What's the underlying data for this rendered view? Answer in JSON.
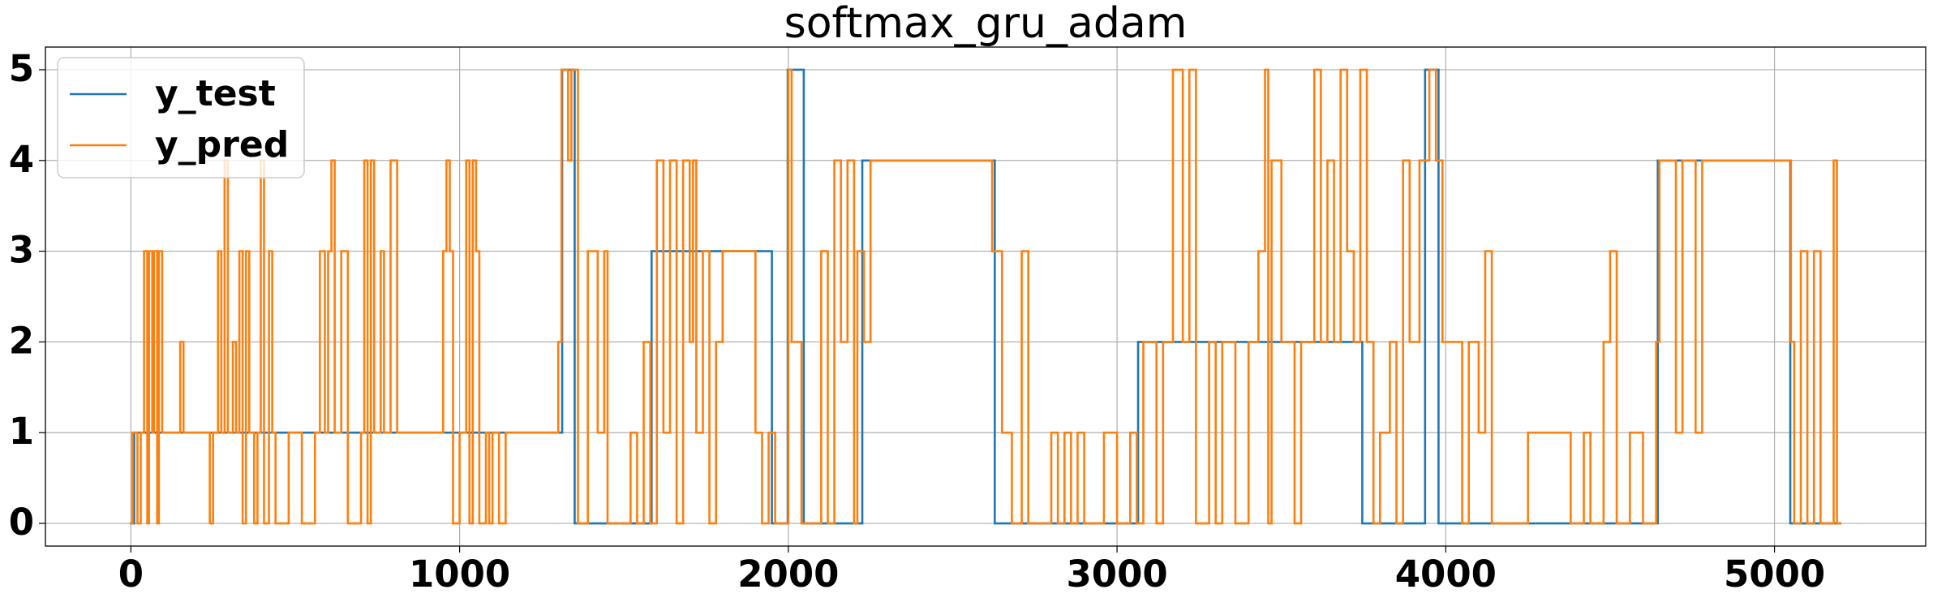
{
  "chart_data": {
    "type": "line",
    "drawstyle": "steps-post",
    "title": "softmax_gru_adam",
    "xlim": [
      -260,
      5460
    ],
    "ylim": [
      -0.25,
      5.25
    ],
    "xticks": [
      0,
      1000,
      2000,
      3000,
      4000,
      5000
    ],
    "yticks": [
      0,
      1,
      2,
      3,
      4,
      5
    ],
    "grid": true,
    "legend": "upper left",
    "series": [
      {
        "name": "y_test",
        "color": "#1f77b4",
        "x": [
          0,
          10,
          1312,
          1350,
          1584,
          1950,
          1998,
          2047,
          2225,
          2628,
          3064,
          3746,
          3937,
          3978,
          4645,
          5048,
          5200
        ],
        "values": [
          0,
          1,
          5,
          0,
          3,
          0,
          5,
          0,
          4,
          0,
          2,
          0,
          5,
          0,
          4,
          0,
          0
        ]
      },
      {
        "name": "y_pred",
        "color": "#ff7f0e",
        "x": [
          0,
          5,
          20,
          30,
          40,
          50,
          55,
          65,
          70,
          80,
          85,
          95,
          150,
          160,
          240,
          250,
          265,
          275,
          285,
          295,
          310,
          320,
          330,
          340,
          350,
          360,
          375,
          385,
          395,
          405,
          420,
          430,
          440,
          480,
          520,
          560,
          575,
          590,
          600,
          610,
          620,
          640,
          660,
          700,
          710,
          720,
          730,
          740,
          760,
          770,
          790,
          810,
          950,
          960,
          970,
          980,
          1000,
          1020,
          1030,
          1040,
          1050,
          1060,
          1080,
          1090,
          1100,
          1120,
          1140,
          1300,
          1310,
          1330,
          1340,
          1360,
          1390,
          1420,
          1440,
          1450,
          1520,
          1540,
          1560,
          1580,
          1600,
          1620,
          1640,
          1660,
          1680,
          1700,
          1710,
          1720,
          1740,
          1760,
          1780,
          1800,
          1900,
          1920,
          1940,
          1960,
          2000,
          2010,
          2040,
          2100,
          2120,
          2140,
          2160,
          2180,
          2200,
          2210,
          2230,
          2250,
          2620,
          2650,
          2680,
          2710,
          2730,
          2800,
          2820,
          2840,
          2860,
          2880,
          2900,
          2960,
          3000,
          3040,
          3060,
          3080,
          3120,
          3140,
          3170,
          3200,
          3220,
          3240,
          3280,
          3300,
          3320,
          3360,
          3400,
          3430,
          3450,
          3460,
          3470,
          3500,
          3540,
          3560,
          3600,
          3620,
          3640,
          3660,
          3680,
          3700,
          3720,
          3740,
          3760,
          3780,
          3800,
          3830,
          3850,
          3870,
          3890,
          3920,
          3950,
          3970,
          3990,
          4050,
          4070,
          4100,
          4120,
          4140,
          4250,
          4380,
          4420,
          4440,
          4480,
          4500,
          4520,
          4560,
          4600,
          4640,
          4650,
          4700,
          4720,
          4760,
          4780,
          5050,
          5060,
          5080,
          5100,
          5120,
          5140,
          5180,
          5190,
          5200
        ],
        "values": [
          0,
          1,
          0,
          1,
          3,
          0,
          3,
          1,
          3,
          0,
          3,
          1,
          2,
          1,
          0,
          1,
          3,
          1,
          4,
          1,
          2,
          1,
          3,
          0,
          3,
          1,
          0,
          1,
          4,
          0,
          3,
          1,
          0,
          1,
          0,
          1,
          3,
          1,
          3,
          4,
          1,
          3,
          0,
          1,
          4,
          0,
          4,
          1,
          3,
          1,
          4,
          1,
          3,
          4,
          3,
          0,
          1,
          4,
          0,
          4,
          3,
          0,
          1,
          0,
          1,
          0,
          1,
          2,
          5,
          4,
          5,
          0,
          3,
          1,
          3,
          0,
          1,
          0,
          2,
          0,
          4,
          1,
          4,
          0,
          4,
          2,
          4,
          1,
          3,
          0,
          2,
          3,
          1,
          0,
          1,
          0,
          5,
          2,
          0,
          3,
          0,
          4,
          2,
          4,
          0,
          3,
          2,
          4,
          3,
          1,
          0,
          3,
          0,
          1,
          0,
          1,
          0,
          1,
          0,
          1,
          0,
          1,
          0,
          2,
          0,
          2,
          5,
          2,
          5,
          0,
          2,
          0,
          2,
          0,
          2,
          3,
          5,
          0,
          4,
          2,
          0,
          2,
          5,
          2,
          4,
          2,
          5,
          3,
          2,
          5,
          2,
          0,
          1,
          2,
          0,
          4,
          2,
          4,
          5,
          4,
          2,
          0,
          2,
          1,
          3,
          0,
          1,
          0,
          1,
          0,
          2,
          3,
          0,
          1,
          0,
          2,
          4,
          1,
          4,
          1,
          4,
          2,
          0,
          3,
          0,
          3,
          0,
          4,
          0,
          0
        ]
      }
    ]
  }
}
